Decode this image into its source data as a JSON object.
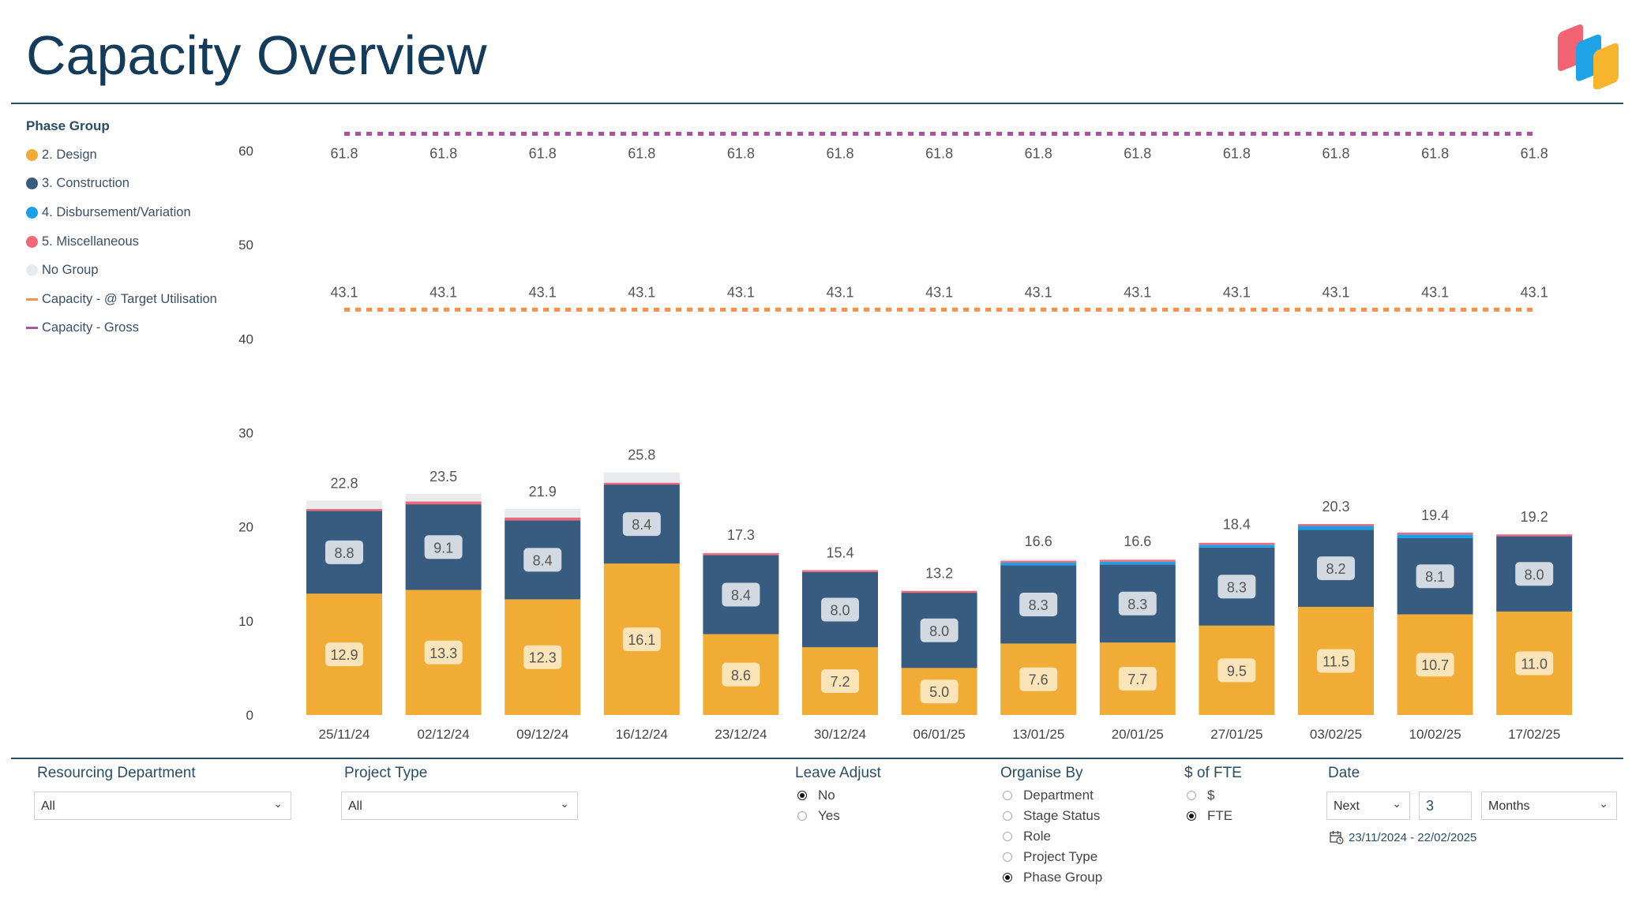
{
  "header": {
    "title": "Capacity Overview"
  },
  "legend": {
    "title": "Phase Group",
    "items": [
      {
        "label": "2. Design",
        "color": "#f0ac35",
        "kind": "dot"
      },
      {
        "label": "3. Construction",
        "color": "#385b80",
        "kind": "dot"
      },
      {
        "label": "4. Disbursement/Variation",
        "color": "#1aa0e6",
        "kind": "dot"
      },
      {
        "label": "5. Miscellaneous",
        "color": "#f0687a",
        "kind": "dot"
      },
      {
        "label": "No Group",
        "color": "#e8ebee",
        "kind": "dot"
      },
      {
        "label": "Capacity - @ Target Utilisation",
        "color": "#f4914e",
        "kind": "line"
      },
      {
        "label": "Capacity - Gross",
        "color": "#a6559d",
        "kind": "line"
      }
    ]
  },
  "chart_data": {
    "type": "bar",
    "stacked": true,
    "categories": [
      "25/11/24",
      "02/12/24",
      "09/12/24",
      "16/12/24",
      "23/12/24",
      "30/12/24",
      "06/01/25",
      "13/01/25",
      "20/01/25",
      "27/01/25",
      "03/02/25",
      "10/02/25",
      "17/02/25"
    ],
    "ylim": [
      0,
      64
    ],
    "yticks": [
      0,
      10,
      20,
      30,
      40,
      50,
      60
    ],
    "grid": false,
    "legend_position": "left",
    "series": [
      {
        "name": "2. Design",
        "color": "#f0ac35",
        "values": [
          12.9,
          13.3,
          12.3,
          16.1,
          8.6,
          7.2,
          5.0,
          7.6,
          7.7,
          9.5,
          11.5,
          10.7,
          11.0
        ],
        "labels": [
          "12.9",
          "13.3",
          "12.3",
          "16.1",
          "8.6",
          "7.2",
          "5.0",
          "7.6",
          "7.7",
          "9.5",
          "11.5",
          "10.7",
          "11.0"
        ]
      },
      {
        "name": "3. Construction",
        "color": "#385b80",
        "values": [
          8.8,
          9.1,
          8.4,
          8.4,
          8.4,
          8.0,
          8.0,
          8.3,
          8.3,
          8.3,
          8.2,
          8.1,
          8.0
        ],
        "labels": [
          "8.8",
          "9.1",
          "8.4",
          "8.4",
          "8.4",
          "8.0",
          "8.0",
          "8.3",
          "8.3",
          "8.3",
          "8.2",
          "8.1",
          "8.0"
        ]
      },
      {
        "name": "4. Disbursement/Variation",
        "color": "#1aa0e6",
        "values": [
          0.0,
          0.0,
          0.0,
          0.0,
          0.0,
          0.0,
          0.0,
          0.3,
          0.3,
          0.3,
          0.4,
          0.4,
          0.0
        ]
      },
      {
        "name": "5. Miscellaneous",
        "color": "#f0687a",
        "values": [
          0.2,
          0.3,
          0.3,
          0.2,
          0.2,
          0.2,
          0.2,
          0.2,
          0.2,
          0.2,
          0.2,
          0.2,
          0.2
        ]
      },
      {
        "name": "No Group",
        "color": "#e8ebee",
        "values": [
          0.9,
          0.8,
          0.9,
          1.1,
          0.1,
          0.0,
          0.0,
          0.2,
          0.1,
          0.1,
          0.0,
          0.0,
          0.0
        ]
      }
    ],
    "totals": [
      "22.8",
      "23.5",
      "21.9",
      "25.8",
      "17.3",
      "15.4",
      "13.2",
      "16.6",
      "16.6",
      "18.4",
      "20.3",
      "19.4",
      "19.2"
    ],
    "lines": [
      {
        "name": "Capacity - Gross",
        "color": "#a6559d",
        "values": [
          61.8,
          61.8,
          61.8,
          61.8,
          61.8,
          61.8,
          61.8,
          61.8,
          61.8,
          61.8,
          61.8,
          61.8,
          61.8
        ],
        "labels": [
          "61.8",
          "61.8",
          "61.8",
          "61.8",
          "61.8",
          "61.8",
          "61.8",
          "61.8",
          "61.8",
          "61.8",
          "61.8",
          "61.8",
          "61.8"
        ]
      },
      {
        "name": "Capacity - @ Target Utilisation",
        "color": "#f4914e",
        "values": [
          43.1,
          43.1,
          43.1,
          43.1,
          43.1,
          43.1,
          43.1,
          43.1,
          43.1,
          43.1,
          43.1,
          43.1,
          43.1
        ],
        "labels": [
          "43.1",
          "43.1",
          "43.1",
          "43.1",
          "43.1",
          "43.1",
          "43.1",
          "43.1",
          "43.1",
          "43.1",
          "43.1",
          "43.1",
          "43.1"
        ]
      }
    ]
  },
  "filters": {
    "resourcing_department": {
      "label": "Resourcing Department",
      "value": "All"
    },
    "project_type": {
      "label": "Project Type",
      "value": "All"
    },
    "leave_adjust": {
      "label": "Leave Adjust",
      "options": [
        {
          "label": "No",
          "selected": true
        },
        {
          "label": "Yes",
          "selected": false
        }
      ]
    },
    "organise_by": {
      "label": "Organise By",
      "options": [
        {
          "label": "Department",
          "selected": false
        },
        {
          "label": "Stage Status",
          "selected": false
        },
        {
          "label": "Role",
          "selected": false
        },
        {
          "label": "Project Type",
          "selected": false
        },
        {
          "label": "Phase Group",
          "selected": true
        }
      ]
    },
    "dollar_of_fte": {
      "label": "$ of FTE",
      "options": [
        {
          "label": "$",
          "selected": false
        },
        {
          "label": "FTE",
          "selected": true
        }
      ]
    },
    "date": {
      "label": "Date",
      "direction": "Next",
      "count": "3",
      "unit": "Months",
      "range": "23/11/2024 - 22/02/2025"
    }
  }
}
